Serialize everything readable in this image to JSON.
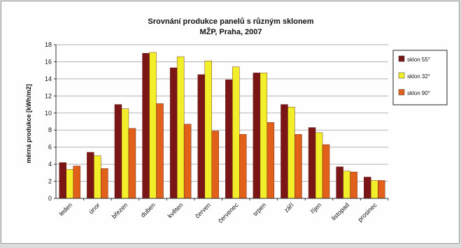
{
  "chart_data": {
    "type": "bar",
    "title": "Srovnání produkce panelů s různým sklonem",
    "subtitle": "MŽP, Praha, 2007",
    "xlabel": "",
    "ylabel": "měrná produkce [kWh/m2]",
    "ylim": [
      0,
      18
    ],
    "yticks": [
      0,
      2,
      4,
      6,
      8,
      10,
      12,
      14,
      16,
      18
    ],
    "grid": true,
    "legend_position": "top-right",
    "categories": [
      "leden",
      "únor",
      "březen",
      "duben",
      "květen",
      "červen",
      "červenec",
      "srpen",
      "září",
      "říjen",
      "listopad",
      "prosinec"
    ],
    "series": [
      {
        "name": "sklon 55°",
        "color": "#7a1616",
        "values": [
          4.2,
          5.4,
          11.0,
          17.0,
          15.3,
          14.5,
          13.9,
          14.7,
          11.0,
          8.3,
          3.7,
          2.5
        ]
      },
      {
        "name": "sklon 32°",
        "color": "#f2ee2a",
        "values": [
          3.4,
          5.0,
          10.5,
          17.1,
          16.6,
          16.1,
          15.4,
          14.7,
          10.7,
          7.7,
          3.2,
          2.1
        ]
      },
      {
        "name": "sklon 90°",
        "color": "#e1611b",
        "values": [
          3.8,
          3.5,
          8.2,
          11.1,
          8.7,
          7.9,
          7.5,
          8.9,
          7.5,
          6.3,
          3.1,
          2.1
        ]
      }
    ]
  }
}
